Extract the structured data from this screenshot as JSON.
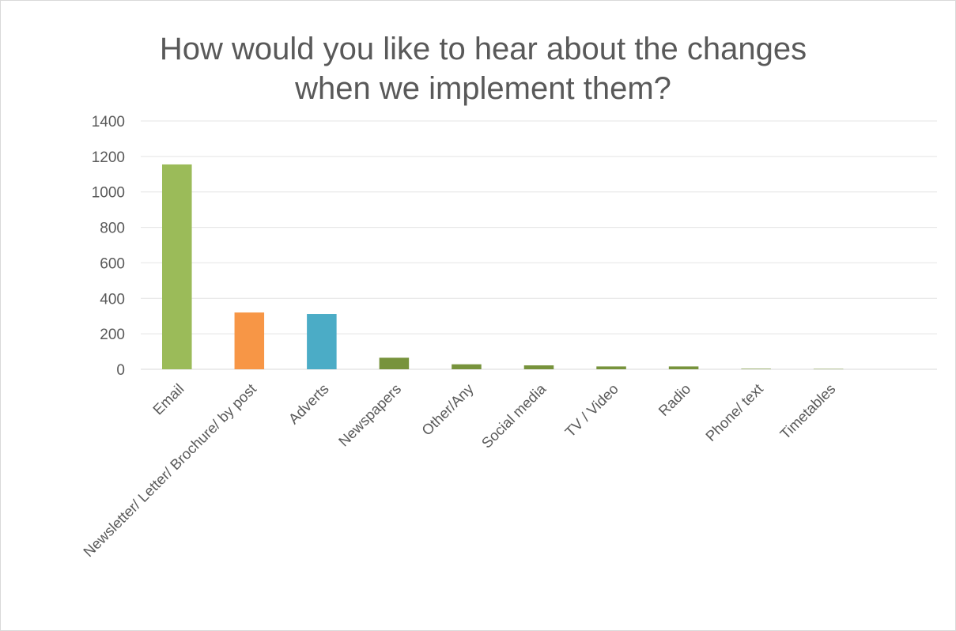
{
  "chart_data": {
    "type": "bar",
    "title_lines": [
      "How would you like to hear about the changes",
      "when we implement them?"
    ],
    "categories": [
      "Email",
      "Newsletter/ Letter/ Brochure/ by post",
      "Adverts",
      "Newspapers",
      "Other/Any",
      "Social media",
      "TV / Video",
      "Radio",
      "Phone/ text",
      "Timetables"
    ],
    "values": [
      1155,
      320,
      312,
      65,
      28,
      22,
      16,
      16,
      3,
      2
    ],
    "colors": [
      "#9bbb59",
      "#f79646",
      "#4bacc6",
      "#77933c",
      "#77933c",
      "#77933c",
      "#77933c",
      "#77933c",
      "#77933c",
      "#77933c"
    ],
    "ylim": [
      0,
      1400
    ],
    "yticks": [
      0,
      200,
      400,
      600,
      800,
      1000,
      1200,
      1400
    ],
    "grid": true,
    "legend": "none"
  }
}
